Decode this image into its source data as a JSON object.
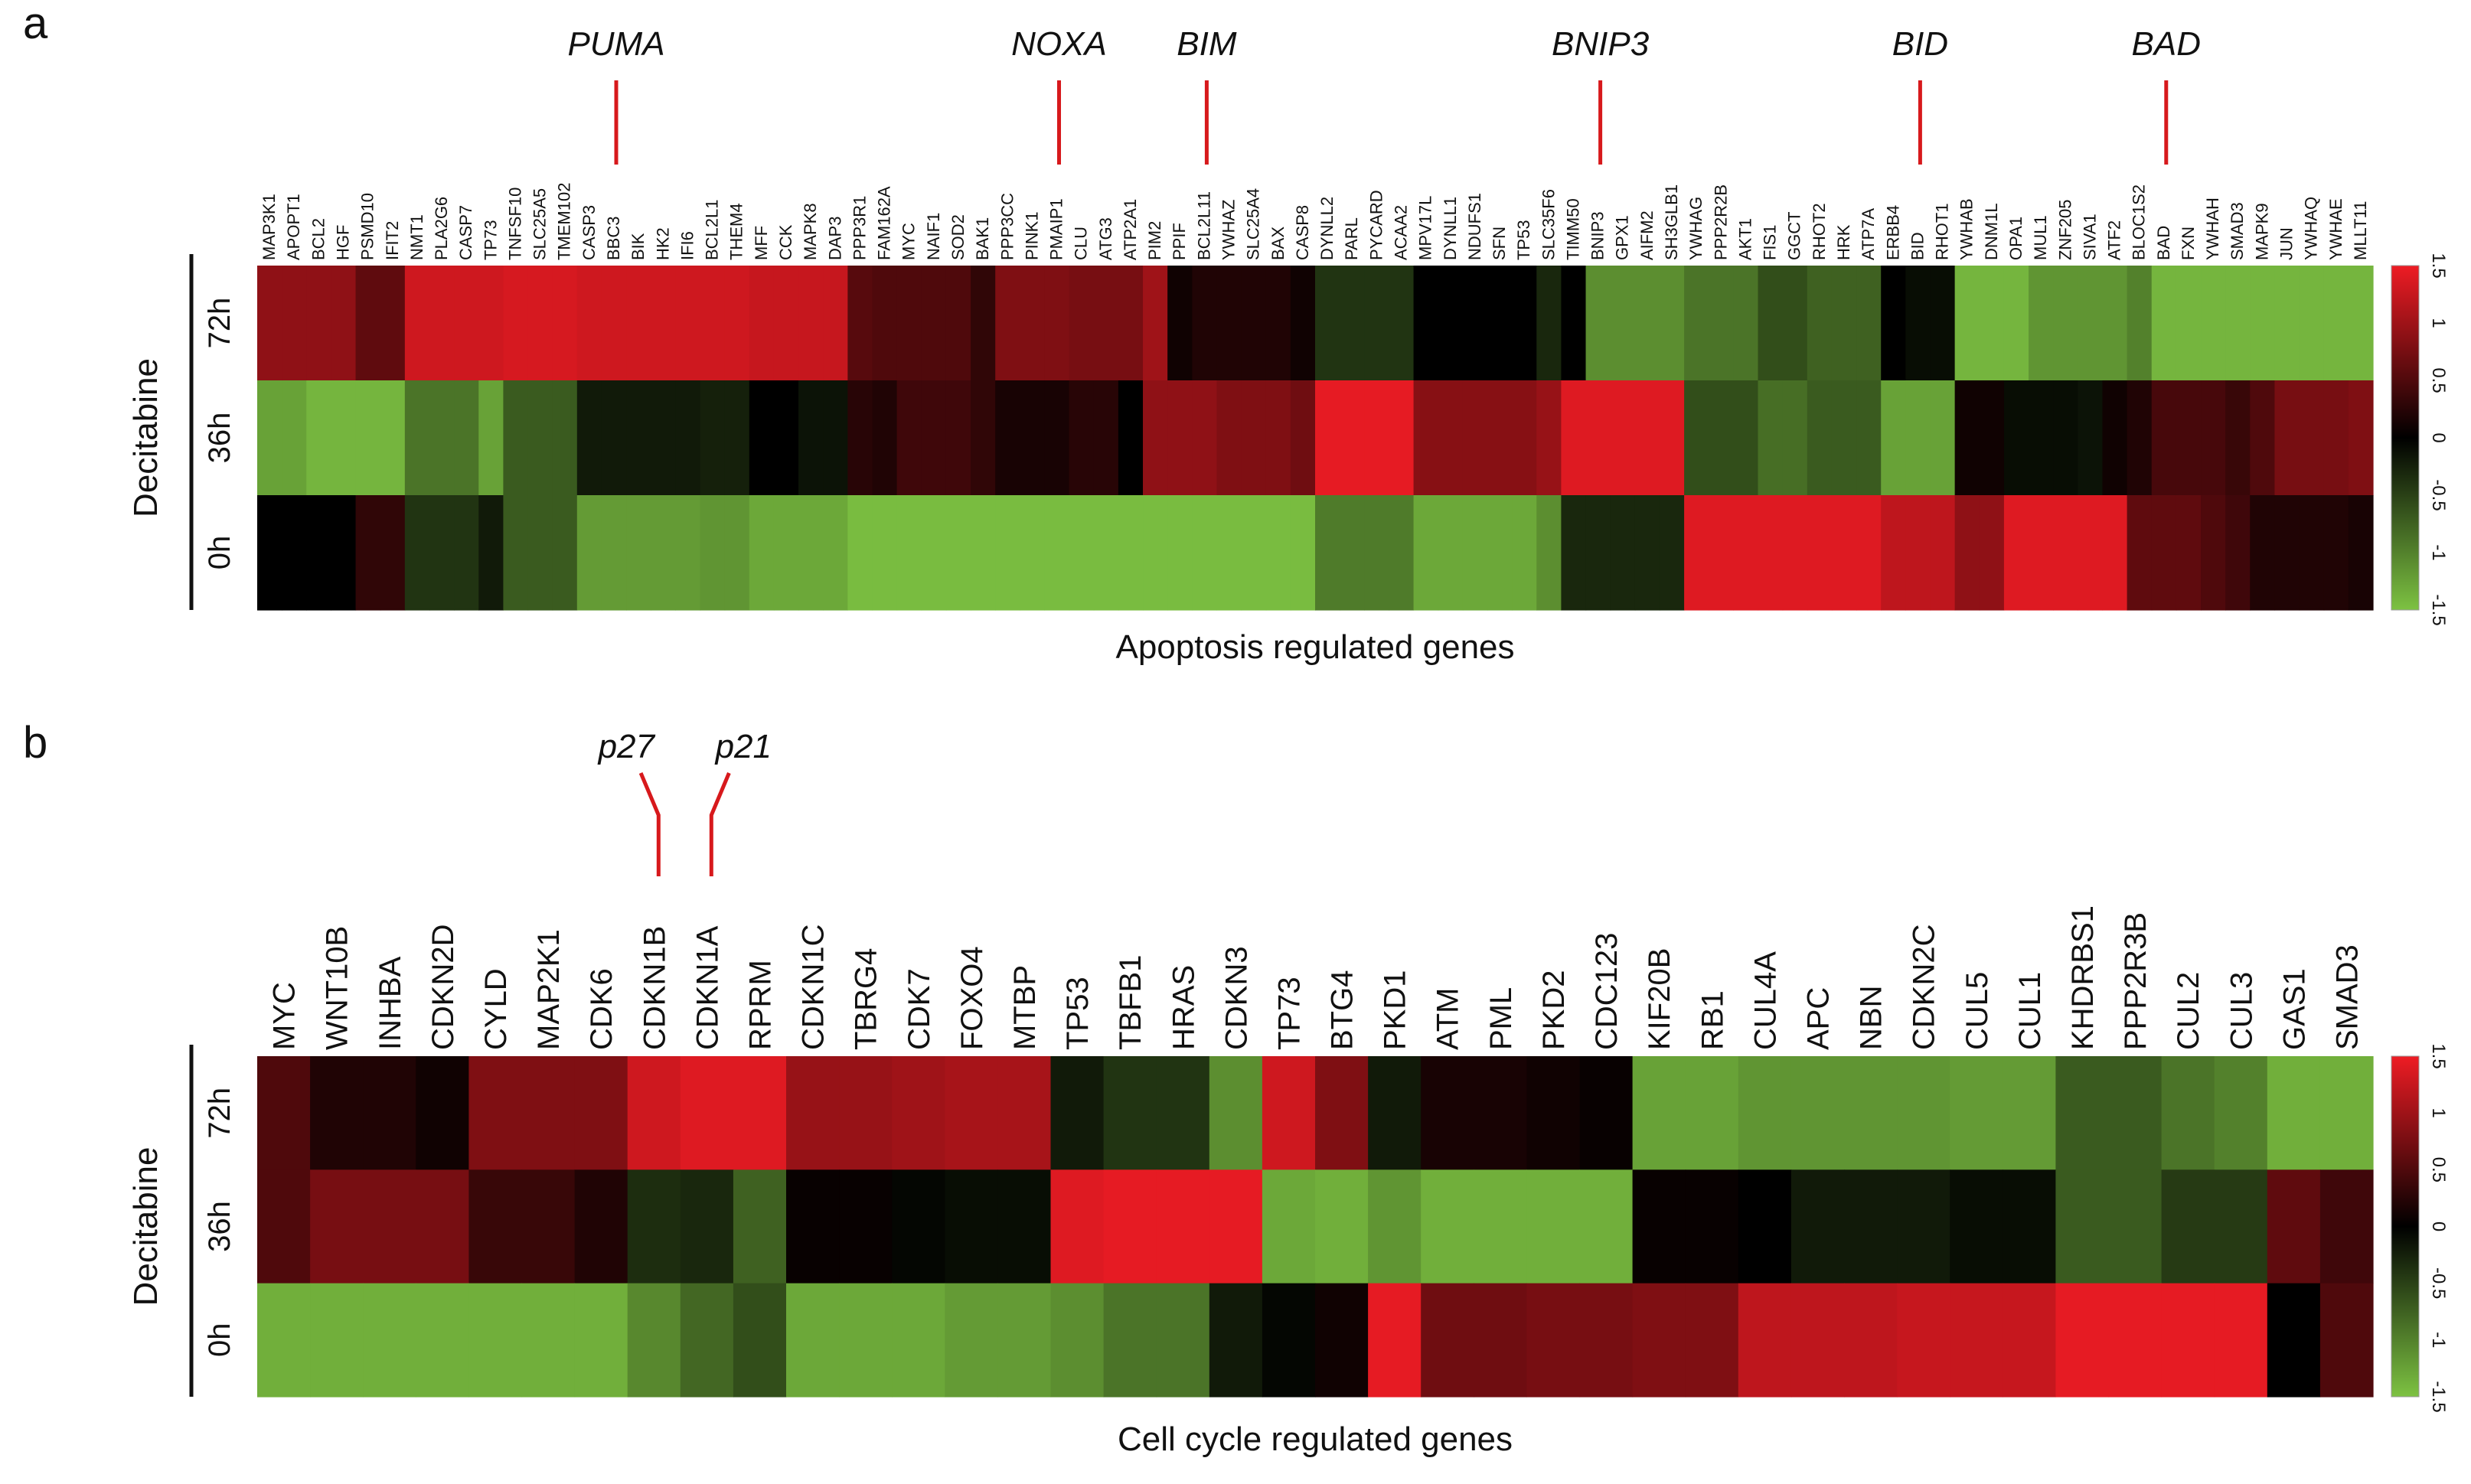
{
  "chart_data": [
    {
      "type": "heatmap",
      "panel": "a",
      "title": "Apoptosis regulated genes",
      "ylabel": "Decitabine",
      "rows": [
        "72h",
        "36h",
        "0h"
      ],
      "colorbar": {
        "ticks": [
          "1.5",
          "1",
          "0.5",
          "0",
          "-0.5",
          "-1",
          "-1.5"
        ],
        "range": [
          -1.5,
          1.5
        ],
        "low": "#7dc242",
        "mid": "#000000",
        "high": "#ee1c24"
      },
      "callouts": [
        {
          "label": "PUMA",
          "gene": "BBC3"
        },
        {
          "label": "NOXA",
          "gene": "PMAIP1"
        },
        {
          "label": "BIM",
          "gene": "BCL2L11"
        },
        {
          "label": "BNIP3",
          "gene": "BNIP3"
        },
        {
          "label": "BID",
          "gene": "BID"
        },
        {
          "label": "BAD",
          "gene": "BAD"
        }
      ],
      "genes": [
        "MAP3K1",
        "APOPT1",
        "BCL2",
        "HGF",
        "PSMD10",
        "IFIT2",
        "NMT1",
        "PLA2G6",
        "CASP7",
        "TP73",
        "TNFSF10",
        "SLC25A5",
        "TMEM102",
        "CASP3",
        "BBC3",
        "BIK",
        "HK2",
        "IFI6",
        "BCL2L1",
        "THEM4",
        "MFF",
        "CCK",
        "MAPK8",
        "DAP3",
        "PPP3R1",
        "FAM162A",
        "MYC",
        "NAIF1",
        "SOD2",
        "BAK1",
        "PPP3CC",
        "PINK1",
        "PMAIP1",
        "CLU",
        "ATG3",
        "ATP2A1",
        "PIM2",
        "PPIF",
        "BCL2L11",
        "YWHAZ",
        "SLC25A4",
        "BAX",
        "CASP8",
        "DYNLL2",
        "PARL",
        "PYCARD",
        "ACAA2",
        "MPV17L",
        "DYNLL1",
        "NDUFS1",
        "SFN",
        "TP53",
        "SLC35F6",
        "TIMM50",
        "BNIP3",
        "GPX1",
        "AIFM2",
        "SH3GLB1",
        "YWHAG",
        "PPP2R2B",
        "AKT1",
        "FIS1",
        "GGCT",
        "RHOT2",
        "HRK",
        "ATP7A",
        "ERBB4",
        "BID",
        "RHOT1",
        "YWHAB",
        "DNM1L",
        "OPA1",
        "MUL1",
        "ZNF205",
        "SIVA1",
        "ATF2",
        "BLOC1S2",
        "BAD",
        "FXN",
        "YWHAH",
        "SMAD3",
        "MAPK9",
        "JUN",
        "YWHAQ",
        "YWHAE",
        "MLLT11"
      ],
      "values": [
        [
          0.9,
          0.9,
          0.9,
          0.9,
          0.6,
          0.6,
          1.3,
          1.3,
          1.3,
          1.3,
          1.35,
          1.35,
          1.35,
          1.3,
          1.3,
          1.3,
          1.3,
          1.3,
          1.3,
          1.3,
          1.25,
          1.25,
          1.25,
          1.25,
          0.55,
          0.5,
          0.5,
          0.5,
          0.5,
          0.3,
          0.8,
          0.8,
          0.8,
          0.75,
          0.75,
          0.75,
          1.0,
          0.1,
          0.2,
          0.2,
          0.2,
          0.2,
          0.1,
          -0.4,
          -0.4,
          -0.4,
          -0.4,
          0.0,
          0.0,
          0.0,
          0.0,
          0.0,
          -0.3,
          0.0,
          -1.1,
          -1.1,
          -1.1,
          -1.1,
          -0.9,
          -0.9,
          -0.9,
          -0.6,
          -0.6,
          -0.75,
          -0.75,
          -0.75,
          0.0,
          -0.1,
          -0.1,
          -1.4,
          -1.4,
          -1.4,
          -1.15,
          -1.15,
          -1.15,
          -1.15,
          -1.0,
          -1.4,
          -1.4,
          -1.4,
          -1.4,
          -1.4,
          -1.4,
          -1.4,
          -1.4,
          -1.4
        ],
        [
          -1.25,
          -1.25,
          -1.4,
          -1.4,
          -1.4,
          -1.4,
          -0.9,
          -0.9,
          -0.9,
          -1.25,
          -0.7,
          -0.7,
          -0.7,
          -0.2,
          -0.2,
          -0.2,
          -0.2,
          -0.2,
          -0.25,
          -0.25,
          0.0,
          0.0,
          -0.15,
          -0.15,
          0.25,
          0.2,
          0.4,
          0.4,
          0.4,
          0.3,
          0.15,
          0.15,
          0.15,
          0.25,
          0.25,
          0.0,
          0.9,
          0.9,
          0.9,
          0.8,
          0.8,
          0.8,
          0.7,
          1.45,
          1.45,
          1.45,
          1.45,
          0.85,
          0.85,
          0.85,
          0.85,
          0.85,
          0.95,
          1.4,
          1.4,
          1.4,
          1.4,
          1.4,
          -0.6,
          -0.6,
          -0.6,
          -0.85,
          -0.85,
          -0.7,
          -0.7,
          -0.7,
          -1.25,
          -1.25,
          -1.25,
          0.1,
          0.1,
          -0.1,
          -0.1,
          -0.1,
          -0.15,
          0.1,
          0.2,
          0.45,
          0.45,
          0.45,
          0.35,
          0.5,
          0.75,
          0.75,
          0.75,
          0.8
        ],
        [
          0.0,
          0.0,
          0.0,
          0.0,
          0.3,
          0.3,
          -0.4,
          -0.4,
          -0.4,
          -0.2,
          -0.7,
          -0.7,
          -0.7,
          -1.2,
          -1.2,
          -1.2,
          -1.2,
          -1.2,
          -1.15,
          -1.15,
          -1.3,
          -1.3,
          -1.3,
          -1.3,
          -1.45,
          -1.45,
          -1.45,
          -1.45,
          -1.45,
          -1.45,
          -1.45,
          -1.45,
          -1.45,
          -1.45,
          -1.45,
          -1.45,
          -1.45,
          -1.45,
          -1.45,
          -1.45,
          -1.45,
          -1.45,
          -1.45,
          -0.95,
          -0.95,
          -0.95,
          -0.95,
          -1.3,
          -1.3,
          -1.3,
          -1.3,
          -1.3,
          -1.1,
          -0.3,
          -0.3,
          -0.3,
          -0.3,
          -0.3,
          1.4,
          1.4,
          1.4,
          1.4,
          1.4,
          1.4,
          1.4,
          1.4,
          1.2,
          1.2,
          1.2,
          0.9,
          0.9,
          1.4,
          1.4,
          1.4,
          1.4,
          1.4,
          0.6,
          0.6,
          0.6,
          0.5,
          0.4,
          0.2,
          0.2,
          0.2,
          0.2,
          0.15
        ]
      ]
    },
    {
      "type": "heatmap",
      "panel": "b",
      "title": "Cell cycle regulated genes",
      "ylabel": "Decitabine",
      "rows": [
        "72h",
        "36h",
        "0h"
      ],
      "colorbar": {
        "ticks": [
          "1.5",
          "1",
          "0.5",
          "0",
          "-0.5",
          "-1",
          "-1.5"
        ],
        "range": [
          -1.5,
          1.5
        ],
        "low": "#7dc242",
        "mid": "#000000",
        "high": "#ee1c24"
      },
      "callouts": [
        {
          "label": "p27",
          "gene": "CDKN1B"
        },
        {
          "label": "p21",
          "gene": "CDKN1A"
        }
      ],
      "genes": [
        "MYC",
        "WNT10B",
        "INHBA",
        "CDKN2D",
        "CYLD",
        "MAP2K1",
        "CDK6",
        "CDKN1B",
        "CDKN1A",
        "RPRM",
        "CDKN1C",
        "TBRG4",
        "CDK7",
        "FOXO4",
        "MTBP",
        "TP53",
        "TBFB1",
        "HRAS",
        "CDKN3",
        "TP73",
        "BTG4",
        "PKD1",
        "ATM",
        "PML",
        "PKD2",
        "CDC123",
        "KIF20B",
        "RB1",
        "CUL4A",
        "APC",
        "NBN",
        "CDKN2C",
        "CUL5",
        "CUL1",
        "KHDRBS1",
        "PPP2R3B",
        "CUL2",
        "CUL3",
        "GAS1",
        "SMAD3"
      ],
      "values": [
        [
          0.5,
          0.2,
          0.2,
          0.1,
          0.8,
          0.8,
          0.8,
          1.3,
          1.4,
          1.4,
          0.95,
          0.95,
          1.0,
          1.05,
          1.05,
          -0.2,
          -0.4,
          -0.4,
          -1.1,
          1.3,
          0.8,
          -0.2,
          0.15,
          0.15,
          0.1,
          0.05,
          -1.25,
          -1.25,
          -1.15,
          -1.15,
          -1.15,
          -1.15,
          -1.2,
          -1.2,
          -0.7,
          -0.7,
          -0.9,
          -1.0,
          -1.35,
          -1.35
        ],
        [
          0.5,
          0.75,
          0.75,
          0.75,
          0.35,
          0.35,
          0.2,
          -0.35,
          -0.3,
          -0.75,
          0.05,
          0.05,
          -0.05,
          -0.1,
          -0.1,
          1.4,
          1.45,
          1.45,
          1.45,
          -1.3,
          -1.35,
          -1.15,
          -1.35,
          -1.35,
          -1.35,
          -1.35,
          0.05,
          0.05,
          0.0,
          -0.2,
          -0.2,
          -0.2,
          -0.1,
          -0.1,
          -0.7,
          -0.7,
          -0.45,
          -0.45,
          0.6,
          0.4
        ],
        [
          -1.35,
          -1.35,
          -1.35,
          -1.35,
          -1.35,
          -1.35,
          -1.35,
          -1.05,
          -0.8,
          -0.6,
          -1.3,
          -1.3,
          -1.3,
          -1.2,
          -1.2,
          -1.1,
          -0.9,
          -0.9,
          -0.2,
          -0.05,
          0.1,
          1.45,
          0.7,
          0.7,
          0.75,
          0.75,
          0.8,
          0.8,
          1.2,
          1.2,
          1.2,
          1.25,
          1.25,
          1.25,
          1.45,
          1.45,
          1.45,
          1.45,
          0.0,
          0.5
        ]
      ]
    }
  ]
}
